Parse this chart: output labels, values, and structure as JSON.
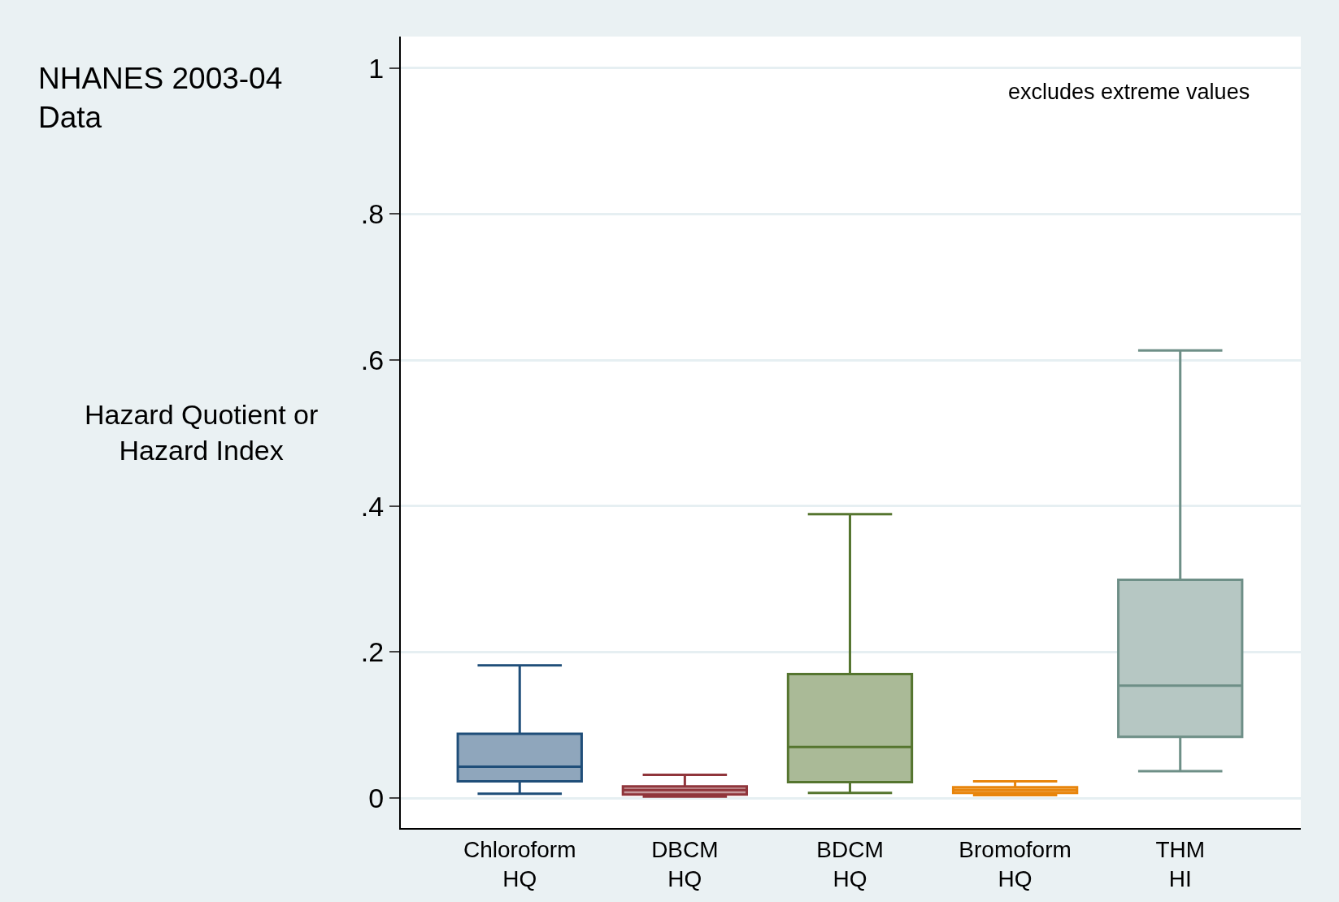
{
  "chart_data": {
    "type": "box",
    "title": "NHANES 2003-04\nData",
    "ylabel": "Hazard Quotient or\nHazard Index",
    "annotations": [
      "excludes extreme values"
    ],
    "categories": [
      "Chloroform\nHQ",
      "DBCM\nHQ",
      "BDCM\nHQ",
      "Bromoform\nHQ",
      "THM\nHI"
    ],
    "series": [
      {
        "color": "#1f4e79",
        "boxes": [
          {
            "low": 0.006,
            "q1": 0.023,
            "median": 0.043,
            "q3": 0.088,
            "high": 0.182
          },
          null,
          null,
          null,
          null
        ]
      },
      {
        "color": "#90353b",
        "boxes": [
          null,
          {
            "low": 0.002,
            "q1": 0.005,
            "median": 0.011,
            "q3": 0.016,
            "high": 0.032
          },
          null,
          null,
          null
        ]
      },
      {
        "color": "#55752f",
        "boxes": [
          null,
          null,
          {
            "low": 0.007,
            "q1": 0.022,
            "median": 0.07,
            "q3": 0.17,
            "high": 0.389
          },
          null,
          null
        ]
      },
      {
        "color": "#e8850c",
        "boxes": [
          null,
          null,
          null,
          {
            "low": 0.004,
            "q1": 0.007,
            "median": 0.011,
            "q3": 0.015,
            "high": 0.023
          },
          null
        ]
      },
      {
        "color": "#6e8f87",
        "boxes": [
          null,
          null,
          null,
          null,
          {
            "low": 0.037,
            "q1": 0.084,
            "median": 0.154,
            "q3": 0.299,
            "high": 0.613
          }
        ]
      }
    ],
    "ylim": [
      -0.041,
      1.043
    ],
    "yticks": [
      0,
      {
        "value": 0.2,
        "label": ".2"
      },
      {
        "value": 0.4,
        "label": ".4"
      },
      {
        "value": 0.6,
        "label": ".6"
      },
      {
        "value": 0.8,
        "label": ".8"
      },
      1
    ],
    "grid": "y"
  }
}
